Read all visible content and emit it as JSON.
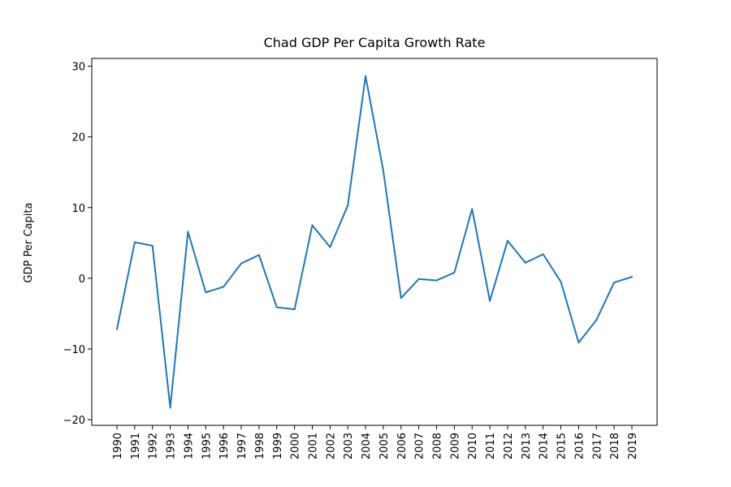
{
  "chart_data": {
    "type": "line",
    "title": "Chad GDP Per Capita Growth Rate",
    "xlabel": "",
    "ylabel": "GDP Per Capita",
    "x": [
      "1990",
      "1991",
      "1992",
      "1993",
      "1994",
      "1995",
      "1996",
      "1997",
      "1998",
      "1999",
      "2000",
      "2001",
      "2002",
      "2003",
      "2004",
      "2005",
      "2006",
      "2007",
      "2008",
      "2009",
      "2010",
      "2011",
      "2012",
      "2013",
      "2014",
      "2015",
      "2016",
      "2017",
      "2018",
      "2019"
    ],
    "series": [
      {
        "color": "#1f77b4",
        "values": [
          -7.2,
          5.1,
          4.6,
          -18.3,
          6.6,
          -2.0,
          -1.2,
          2.1,
          3.3,
          -4.1,
          -4.4,
          7.5,
          4.4,
          10.3,
          28.6,
          15.2,
          -2.8,
          -0.1,
          -0.3,
          0.8,
          9.8,
          -3.2,
          5.3,
          2.2,
          3.4,
          -0.5,
          -9.1,
          -5.9,
          -0.6,
          0.2
        ]
      }
    ],
    "ylim": [
      -20.8,
      31.1
    ],
    "yticks": [
      30,
      20,
      10,
      0,
      -10,
      -20
    ],
    "ytick_labels": [
      "30",
      "20",
      "10",
      "0",
      "−10",
      "−20"
    ],
    "grid": false
  }
}
